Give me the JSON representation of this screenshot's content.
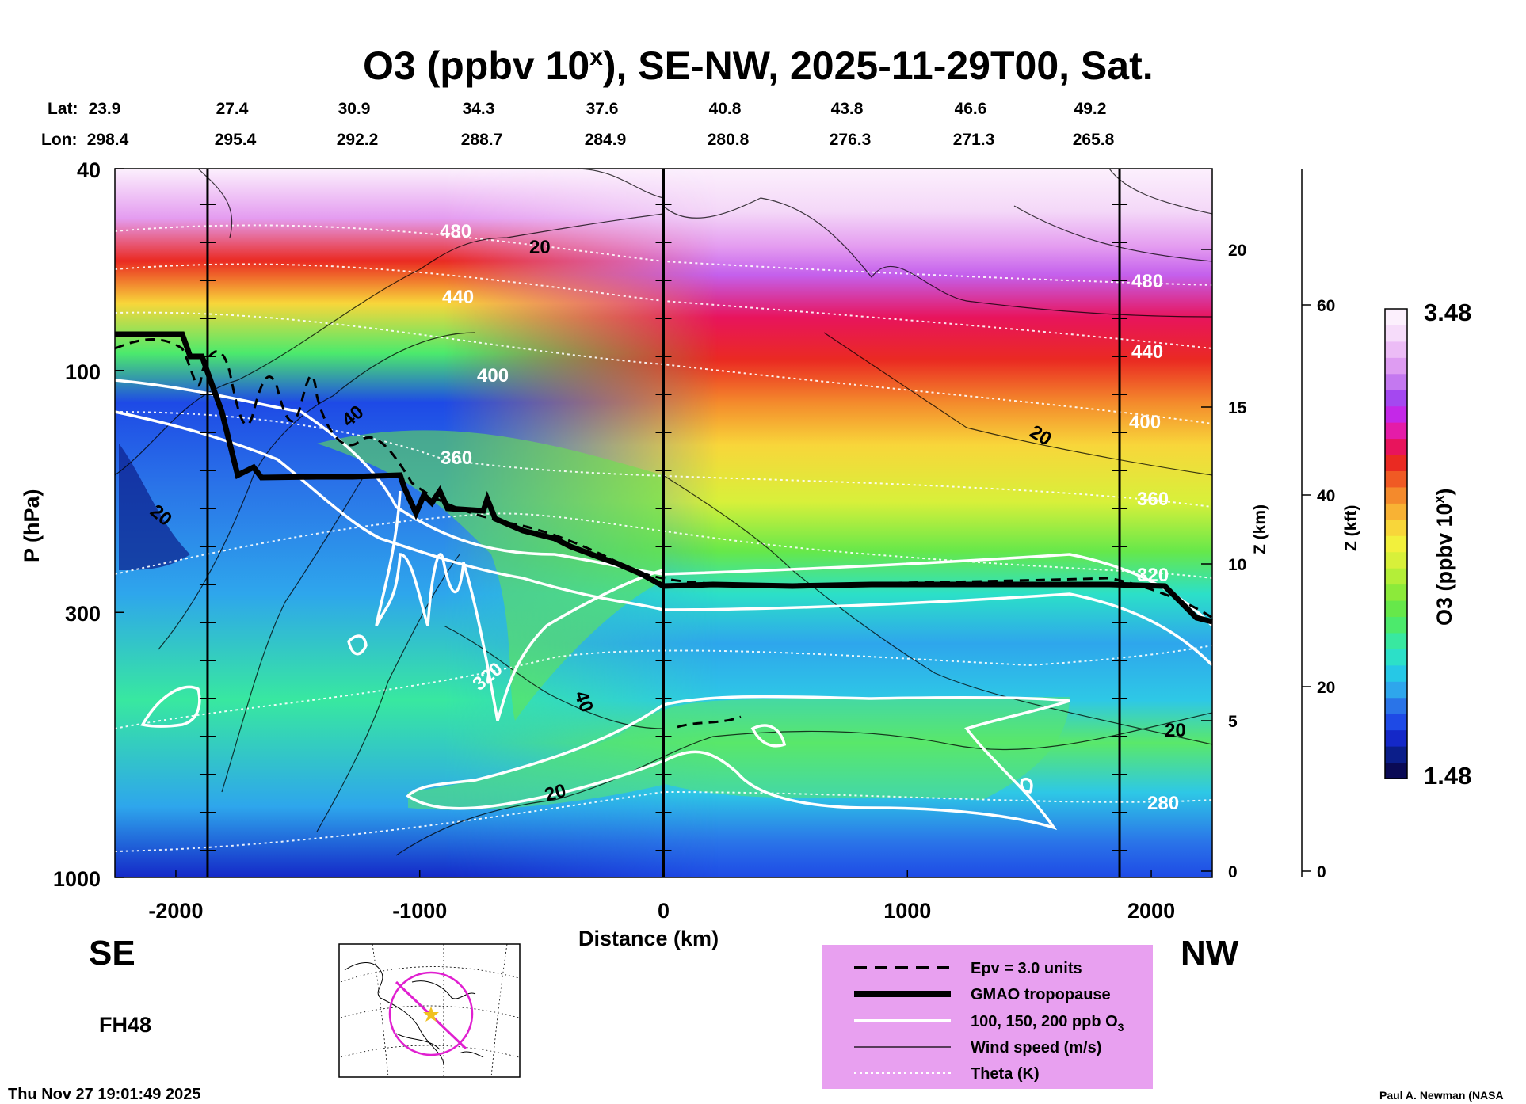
{
  "chart_data": {
    "type": "heatmap",
    "title_main": "O3 (ppbv 10",
    "title_sup": "x",
    "title_rest": "), SE-NW, 2025-11-29T00, Sat.",
    "lat_label": "Lat:",
    "lon_label": "Lon:",
    "lat": [
      "23.9",
      "27.4",
      "30.9",
      "34.3",
      "37.6",
      "40.8",
      "43.8",
      "46.6",
      "49.2"
    ],
    "lon": [
      "298.4",
      "295.4",
      "292.2",
      "288.7",
      "284.9",
      "280.8",
      "276.3",
      "271.3",
      "265.8"
    ],
    "xlabel": "Distance (km)",
    "xlim": [
      -2250,
      2250
    ],
    "x_ticks": [
      -2000,
      -1000,
      0,
      1000,
      2000
    ],
    "x_tick_labels": [
      "-2000",
      "-1000",
      "0",
      "1000",
      "2000"
    ],
    "ylabel": "P (hPa)",
    "ylim": [
      1000,
      40
    ],
    "y_ticks": [
      40,
      100,
      300,
      1000
    ],
    "y_tick_labels": [
      "40",
      "100",
      "300",
      "1000"
    ],
    "z_km_label": "Z (km)",
    "z_km_ticks": [
      "0",
      "5",
      "10",
      "15",
      "20"
    ],
    "z_kft_label": "Z (kft)",
    "z_kft_ticks": [
      "0",
      "20",
      "40",
      "60"
    ],
    "colorbar_label": "O3 (ppbv 10",
    "colorbar_label_sup": "x",
    "colorbar_label_end": ")",
    "colorbar_min": "1.48",
    "colorbar_max": "3.48",
    "colorbar_colors": [
      "#0a0a55",
      "#0b1e8a",
      "#1428c8",
      "#1e4ae6",
      "#2a74e8",
      "#2ea6ec",
      "#26c8e6",
      "#2ce0c8",
      "#38e8a0",
      "#4cea6c",
      "#66e84a",
      "#8cea3a",
      "#b4ee38",
      "#d8f03a",
      "#f2f03c",
      "#f8d63a",
      "#f8b234",
      "#f48a2c",
      "#f05a24",
      "#ea2a22",
      "#e8145c",
      "#e41ca8",
      "#c428e8",
      "#a448f0",
      "#c478f0",
      "#de9cf2",
      "#ecbcf6",
      "#f6dcfa",
      "#fcf0fd"
    ],
    "vertical_lines_km": [
      -1870,
      0,
      1870
    ],
    "contour_labels_white": [
      "480",
      "440",
      "400",
      "360",
      "320",
      "480",
      "440",
      "400",
      "360",
      "320",
      "280"
    ],
    "contour_labels_black": [
      "20",
      "40",
      "20",
      "40",
      "20",
      "20",
      "20"
    ],
    "side_labels": {
      "left": "SE",
      "right": "NW"
    },
    "forecast_hour": "FH48",
    "legend": {
      "epv": "Epv = 3.0 units",
      "tropopause": "GMAO tropopause",
      "ozone_prefix": "100, 150, 200 ppb O",
      "ozone_sub": "3",
      "wind": "Wind speed (m/s)",
      "theta": "Theta (K)"
    },
    "timestamp": "Thu Nov 27 19:01:49 2025",
    "credit": "Paul A. Newman (NASA"
  }
}
